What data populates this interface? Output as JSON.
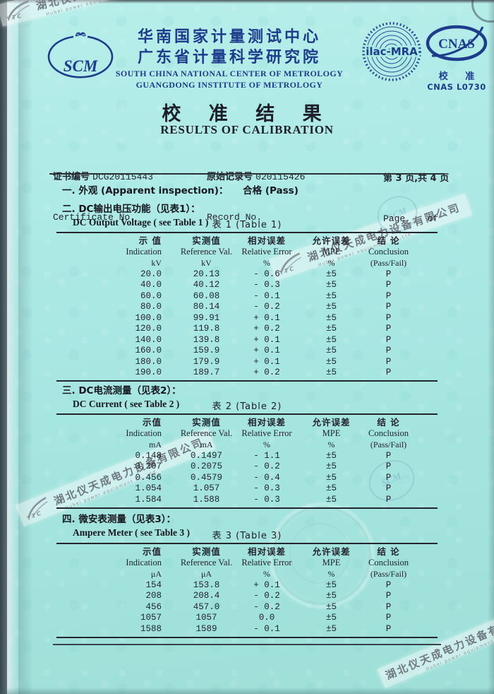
{
  "colors": {
    "accent_navy": "#1d3c8c",
    "paper": "#aae8e4",
    "ink": "#22242e"
  },
  "header": {
    "scm_logo_text": "SCM",
    "org_cn_1": "华南国家计量测试中心",
    "org_cn_2": "广东省计量科学研究院",
    "org_en_1": "SOUTH CHINA NATIONAL CENTER OF METROLOGY",
    "org_en_2": "GUANGDONG INSTITUTE OF METROLOGY",
    "ilac_logo_text": "ilac-MRA",
    "cnas_logo_text": "CNAS",
    "cnas_cn": "校 准",
    "cnas_no": "CNAS L0730"
  },
  "title": {
    "cn": "校 准 结 果",
    "en": "RESULTS OF CALIBRATION"
  },
  "meta": {
    "cert_label_cn": "证书编号",
    "cert_no": "DCG20115443",
    "cert_label_en": "Certificate No.",
    "record_label_cn": "原始记录号",
    "record_no": "020115426",
    "record_label_en": "Record No.",
    "page_cn": "第 3 页,共 4 页",
    "page_en": "Page    of"
  },
  "sections": [
    {
      "no": "一.",
      "title_cn": "外观 (Apparent inspection)：",
      "result": "合格 (Pass)"
    },
    {
      "no": "二.",
      "title_cn": "DC输出电压功能（见表1）：",
      "title_en": "DC Output Voltage ( see Table 1 )"
    },
    {
      "no": "三.",
      "title_cn": "DC电流测量（见表2）：",
      "title_en": "DC Current ( see Table 2 )"
    },
    {
      "no": "四.",
      "title_cn": "微安表测量（见表3）：",
      "title_en": "Ampere Meter ( see Table 3 )"
    }
  ],
  "tables": [
    {
      "caption": "表 1 (Table 1)",
      "headers_cn": [
        "示 值",
        "实测值",
        "相对误差",
        "允许误差",
        "结 论"
      ],
      "headers_en": [
        "Indication",
        "Reference Val.",
        "Relative Error",
        "MPE",
        "Conclusion"
      ],
      "units": [
        "kV",
        "kV",
        "%",
        "%",
        "(Pass/Fail)"
      ],
      "rows": [
        [
          "20.0",
          "20.13",
          "- 0.6",
          "±5",
          "P"
        ],
        [
          "40.0",
          "40.12",
          "- 0.3",
          "±5",
          "P"
        ],
        [
          "60.0",
          "60.08",
          "- 0.1",
          "±5",
          "P"
        ],
        [
          "80.0",
          "80.14",
          "- 0.2",
          "±5",
          "P"
        ],
        [
          "100.0",
          "99.91",
          "+ 0.1",
          "±5",
          "P"
        ],
        [
          "120.0",
          "119.8",
          "+ 0.2",
          "±5",
          "P"
        ],
        [
          "140.0",
          "139.8",
          "+ 0.1",
          "±5",
          "P"
        ],
        [
          "160.0",
          "159.9",
          "+ 0.1",
          "±5",
          "P"
        ],
        [
          "180.0",
          "179.9",
          "+ 0.1",
          "±5",
          "P"
        ],
        [
          "190.0",
          "189.7",
          "+ 0.2",
          "±5",
          "P"
        ]
      ]
    },
    {
      "caption": "表 2 (Table 2)",
      "headers_cn": [
        "示值",
        "实测值",
        "相对误差",
        "允许误差",
        "结 论"
      ],
      "headers_en": [
        "Indication",
        "Reference Val.",
        "Relative Error",
        "MPE",
        "Conclusion"
      ],
      "units": [
        "mA",
        "mA",
        "%",
        "%",
        "(Pass/Fail)"
      ],
      "rows": [
        [
          "0.148",
          "0.1497",
          "- 1.1",
          "±5",
          "P"
        ],
        [
          "0.207",
          "0.2075",
          "- 0.2",
          "±5",
          "P"
        ],
        [
          "0.456",
          "0.4579",
          "- 0.4",
          "±5",
          "P"
        ],
        [
          "1.054",
          "1.057",
          "- 0.3",
          "±5",
          "P"
        ],
        [
          "1.584",
          "1.588",
          "- 0.3",
          "±5",
          "P"
        ]
      ]
    },
    {
      "caption": "表 3 (Table 3)",
      "headers_cn": [
        "示值",
        "实测值",
        "相对误差",
        "允许误差",
        "结 论"
      ],
      "headers_en": [
        "Indication",
        "Reference Val.",
        "Relative Error",
        "MPE",
        "Conclusion"
      ],
      "units": [
        "μA",
        "μA",
        "%",
        "%",
        "(Pass/Fail)"
      ],
      "rows": [
        [
          "154",
          "153.8",
          "+ 0.1",
          "±5",
          "P"
        ],
        [
          "208",
          "208.4",
          "- 0.2",
          "±5",
          "P"
        ],
        [
          "456",
          "457.0",
          "- 0.2",
          "±5",
          "P"
        ],
        [
          "1057",
          "1057",
          "0.0",
          "±5",
          "P"
        ],
        [
          "1588",
          "1589",
          "- 0.1",
          "±5",
          "P"
        ]
      ]
    }
  ],
  "watermark": {
    "company_cn": "湖北仪天成电力设备有限公司",
    "company_en": "Hubei power equipment Co.,Ltd",
    "logo_text": "YTC",
    "scm_stamp_text": "SCM"
  }
}
